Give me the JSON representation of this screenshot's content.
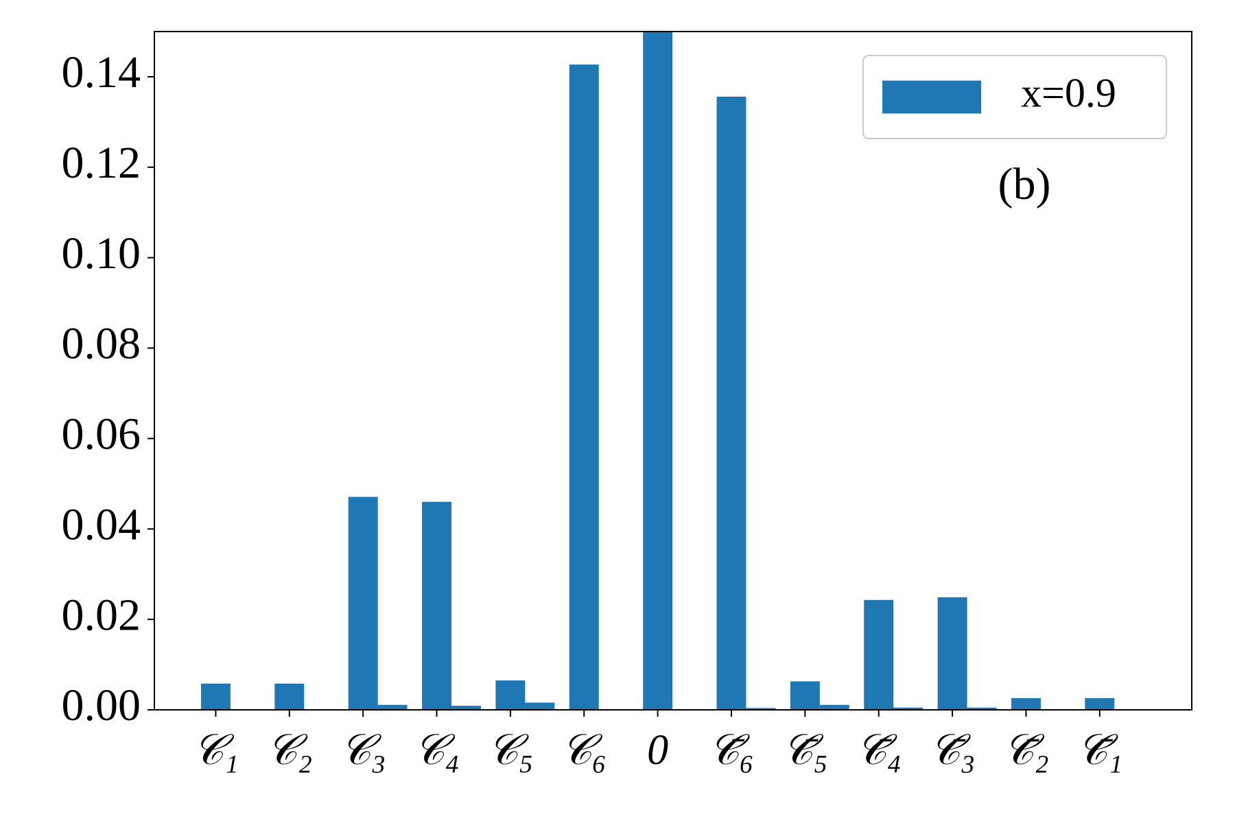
{
  "chart_data": {
    "type": "bar",
    "categories": [
      "𝒞₁",
      "𝒞₂",
      "𝒞₃",
      "𝒞₄",
      "𝒞₅",
      "𝒞₆",
      "0",
      "𝒞̄₆",
      "𝒞̄₅",
      "𝒞̄₄",
      "𝒞̄₃",
      "𝒞̄₂",
      "𝒞̄₁"
    ],
    "series": [
      {
        "name": "x=0.9",
        "color": "#1f77b4",
        "values": [
          0.0058,
          0.0058,
          0.0471,
          0.046,
          0.0065,
          0.1427,
          0.15,
          0.1356,
          0.0063,
          0.0243,
          0.0249,
          0.0026,
          0.0026
        ]
      },
      {
        "color": "#1f77b4",
        "values": [
          0,
          0,
          0.0011,
          0.0009,
          0.0016,
          0,
          0,
          0.0004,
          0.0011,
          0.0005,
          0.0005,
          0,
          0
        ]
      }
    ],
    "ylim": [
      0,
      0.15
    ],
    "yticks": [
      {
        "value": 0,
        "label": "0.00"
      },
      {
        "value": 0.02,
        "label": "0.02"
      },
      {
        "value": 0.04,
        "label": "0.04"
      },
      {
        "value": 0.06,
        "label": "0.06"
      },
      {
        "value": 0.08,
        "label": "0.08"
      },
      {
        "value": 0.1,
        "label": "0.10"
      },
      {
        "value": 0.12,
        "label": "0.12"
      },
      {
        "value": 0.14,
        "label": "0.14"
      }
    ],
    "annotation": "(b)",
    "legend": "upper right",
    "grid": false
  }
}
